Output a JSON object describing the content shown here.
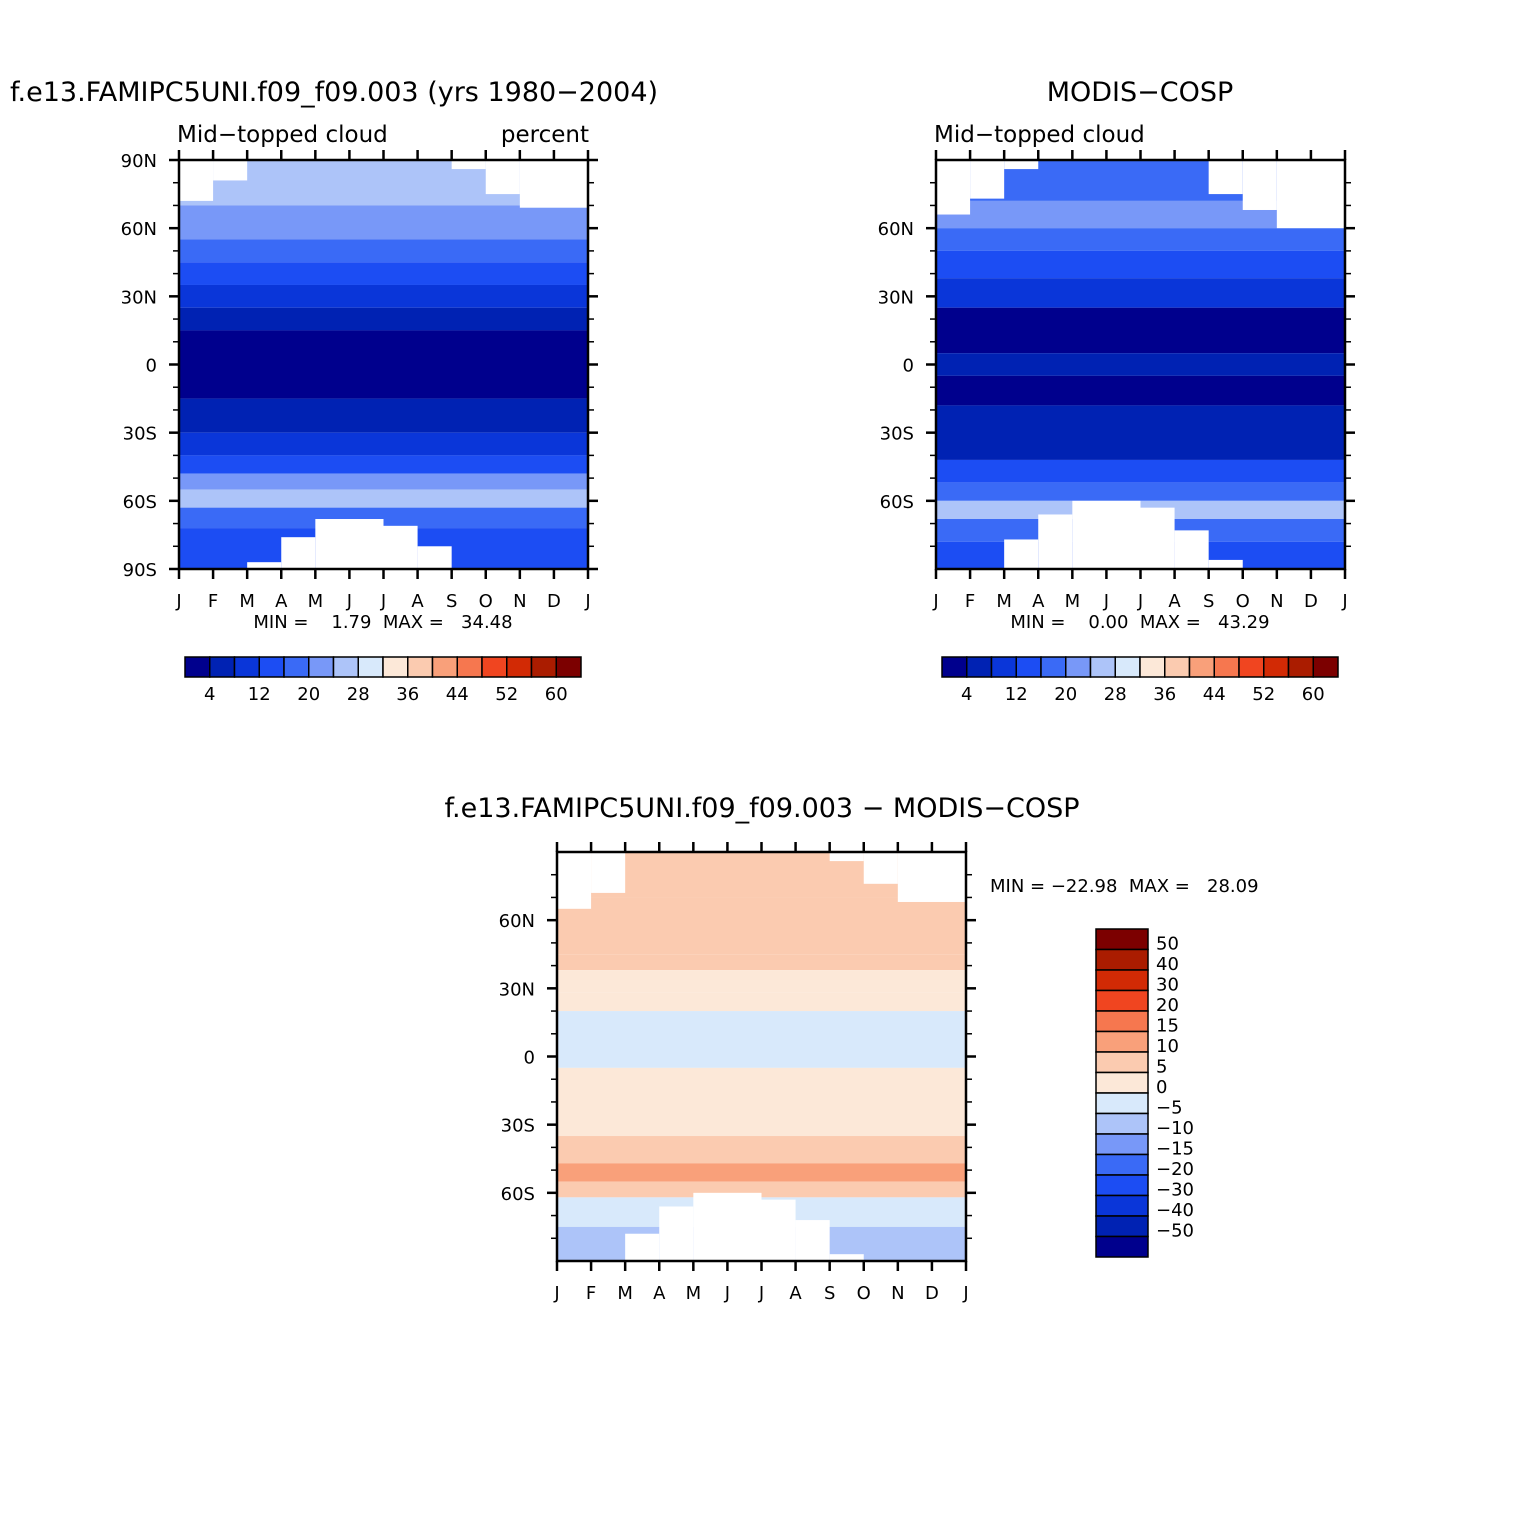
{
  "chart_data": [
    {
      "type": "heatmap",
      "id": "model",
      "title": "f.e13.FAMIPC5UNI.f09_f09.003 (yrs 1980-2004)",
      "left_label": "Mid-topped cloud",
      "right_label": "percent",
      "x_ticks": [
        "J",
        "F",
        "M",
        "A",
        "M",
        "J",
        "J",
        "A",
        "S",
        "O",
        "N",
        "D",
        "J"
      ],
      "y_ticks": [
        "90N",
        "60N",
        "30N",
        "0",
        "30S",
        "60S",
        "90S"
      ],
      "ylim": [
        -90,
        90
      ],
      "stats": "MIN =    1.79  MAX =   34.48",
      "colorbar_labels": [
        "4",
        "12",
        "20",
        "28",
        "36",
        "44",
        "52",
        "60"
      ],
      "bands": [
        {
          "lat": [
            70,
            90
          ],
          "bin": 6
        },
        {
          "lat": [
            55,
            70
          ],
          "bin": 5
        },
        {
          "lat": [
            45,
            55
          ],
          "bin": 4
        },
        {
          "lat": [
            35,
            45
          ],
          "bin": 3
        },
        {
          "lat": [
            25,
            35
          ],
          "bin": 2
        },
        {
          "lat": [
            15,
            25
          ],
          "bin": 1
        },
        {
          "lat": [
            -15,
            15
          ],
          "bin": 0
        },
        {
          "lat": [
            -30,
            -15
          ],
          "bin": 1
        },
        {
          "lat": [
            -40,
            -30
          ],
          "bin": 2
        },
        {
          "lat": [
            -48,
            -40
          ],
          "bin": 3
        },
        {
          "lat": [
            -55,
            -48
          ],
          "bin": 5
        },
        {
          "lat": [
            -63,
            -55
          ],
          "bin": 6
        },
        {
          "lat": [
            -72,
            -63
          ],
          "bin": 4
        },
        {
          "lat": [
            -90,
            -72
          ],
          "bin": 3
        }
      ],
      "blanks": [
        {
          "month": [
            0,
            1
          ],
          "lat": [
            72,
            90
          ]
        },
        {
          "month": [
            1,
            2
          ],
          "lat": [
            81,
            90
          ]
        },
        {
          "month": [
            8,
            9
          ],
          "lat": [
            86,
            90
          ]
        },
        {
          "month": [
            9,
            10
          ],
          "lat": [
            75,
            90
          ]
        },
        {
          "month": [
            10,
            12
          ],
          "lat": [
            69,
            90
          ]
        },
        {
          "month": [
            2,
            3
          ],
          "lat": [
            -90,
            -87
          ]
        },
        {
          "month": [
            3,
            4
          ],
          "lat": [
            -90,
            -76
          ]
        },
        {
          "month": [
            4,
            6
          ],
          "lat": [
            -90,
            -68
          ]
        },
        {
          "month": [
            6,
            7
          ],
          "lat": [
            -90,
            -71
          ]
        },
        {
          "month": [
            7,
            8
          ],
          "lat": [
            -90,
            -80
          ]
        }
      ]
    },
    {
      "type": "heatmap",
      "id": "obs",
      "title": "MODIS-COSP",
      "left_label": "Mid-topped cloud",
      "right_label": "",
      "x_ticks": [
        "J",
        "F",
        "M",
        "A",
        "M",
        "J",
        "J",
        "A",
        "S",
        "O",
        "N",
        "D",
        "J"
      ],
      "y_ticks": [
        "60N",
        "30N",
        "0",
        "30S",
        "60S"
      ],
      "ylim": [
        -90,
        90
      ],
      "stats": "MIN =    0.00  MAX =   43.29",
      "colorbar_labels": [
        "4",
        "12",
        "20",
        "28",
        "36",
        "44",
        "52",
        "60"
      ],
      "bands": [
        {
          "lat": [
            72,
            90
          ],
          "bin": 4
        },
        {
          "lat": [
            60,
            72
          ],
          "bin": 5
        },
        {
          "lat": [
            50,
            60
          ],
          "bin": 4
        },
        {
          "lat": [
            38,
            50
          ],
          "bin": 3
        },
        {
          "lat": [
            25,
            38
          ],
          "bin": 2
        },
        {
          "lat": [
            5,
            25
          ],
          "bin": 0
        },
        {
          "lat": [
            -5,
            5
          ],
          "bin": 1
        },
        {
          "lat": [
            -18,
            -5
          ],
          "bin": 0
        },
        {
          "lat": [
            -42,
            -18
          ],
          "bin": 1
        },
        {
          "lat": [
            -52,
            -42
          ],
          "bin": 3
        },
        {
          "lat": [
            -60,
            -52
          ],
          "bin": 4
        },
        {
          "lat": [
            -68,
            -60
          ],
          "bin": 6
        },
        {
          "lat": [
            -78,
            -68
          ],
          "bin": 4
        },
        {
          "lat": [
            -90,
            -78
          ],
          "bin": 3
        }
      ],
      "blanks": [
        {
          "month": [
            0,
            1
          ],
          "lat": [
            66,
            90
          ]
        },
        {
          "month": [
            1,
            2
          ],
          "lat": [
            73,
            90
          ]
        },
        {
          "month": [
            2,
            3
          ],
          "lat": [
            86,
            90
          ]
        },
        {
          "month": [
            8,
            9
          ],
          "lat": [
            75,
            90
          ]
        },
        {
          "month": [
            9,
            10
          ],
          "lat": [
            68,
            90
          ]
        },
        {
          "month": [
            10,
            12
          ],
          "lat": [
            60,
            90
          ]
        },
        {
          "month": [
            2,
            3
          ],
          "lat": [
            -90,
            -77
          ]
        },
        {
          "month": [
            3,
            4
          ],
          "lat": [
            -90,
            -66
          ]
        },
        {
          "month": [
            4,
            6
          ],
          "lat": [
            -90,
            -60
          ]
        },
        {
          "month": [
            6,
            7
          ],
          "lat": [
            -90,
            -63
          ]
        },
        {
          "month": [
            7,
            8
          ],
          "lat": [
            -90,
            -73
          ]
        },
        {
          "month": [
            8,
            9
          ],
          "lat": [
            -90,
            -86
          ]
        }
      ]
    },
    {
      "type": "heatmap",
      "id": "diff",
      "title": "f.e13.FAMIPC5UNI.f09_f09.003 - MODIS-COSP",
      "x_ticks": [
        "J",
        "F",
        "M",
        "A",
        "M",
        "J",
        "J",
        "A",
        "S",
        "O",
        "N",
        "D",
        "J"
      ],
      "y_ticks": [
        "60N",
        "30N",
        "0",
        "30S",
        "60S"
      ],
      "ylim": [
        -90,
        90
      ],
      "stats": "MIN = -22.98  MAX =   28.09",
      "colorbar_labels": [
        "50",
        "40",
        "30",
        "20",
        "15",
        "10",
        "5",
        "0",
        "-5",
        "-10",
        "-15",
        "-20",
        "-30",
        "-40",
        "-50"
      ],
      "bands": [
        {
          "lat": [
            70,
            90
          ],
          "bin": 9
        },
        {
          "lat": [
            45,
            70
          ],
          "bin": 9
        },
        {
          "lat": [
            38,
            45
          ],
          "bin": 9
        },
        {
          "lat": [
            28,
            38
          ],
          "bin": 8
        },
        {
          "lat": [
            20,
            28
          ],
          "bin": 8
        },
        {
          "lat": [
            -5,
            20
          ],
          "bin": 7
        },
        {
          "lat": [
            -35,
            -5
          ],
          "bin": 8
        },
        {
          "lat": [
            -47,
            -35
          ],
          "bin": 9
        },
        {
          "lat": [
            -55,
            -47
          ],
          "bin": 10
        },
        {
          "lat": [
            -62,
            -55
          ],
          "bin": 9
        },
        {
          "lat": [
            -75,
            -62
          ],
          "bin": 7
        },
        {
          "lat": [
            -90,
            -75
          ],
          "bin": 6
        }
      ],
      "blanks": [
        {
          "month": [
            0,
            1
          ],
          "lat": [
            65,
            90
          ]
        },
        {
          "month": [
            1,
            2
          ],
          "lat": [
            72,
            90
          ]
        },
        {
          "month": [
            8,
            9
          ],
          "lat": [
            86,
            90
          ]
        },
        {
          "month": [
            9,
            10
          ],
          "lat": [
            76,
            90
          ]
        },
        {
          "month": [
            10,
            12
          ],
          "lat": [
            68,
            90
          ]
        },
        {
          "month": [
            2,
            3
          ],
          "lat": [
            -90,
            -78
          ]
        },
        {
          "month": [
            3,
            4
          ],
          "lat": [
            -90,
            -66
          ]
        },
        {
          "month": [
            4,
            6
          ],
          "lat": [
            -90,
            -60
          ]
        },
        {
          "month": [
            6,
            7
          ],
          "lat": [
            -90,
            -63
          ]
        },
        {
          "month": [
            7,
            8
          ],
          "lat": [
            -90,
            -72
          ]
        },
        {
          "month": [
            8,
            9
          ],
          "lat": [
            -90,
            -87
          ]
        }
      ]
    }
  ],
  "palette": {
    "abs": [
      "#00008d",
      "#0022b3",
      "#0a36d9",
      "#1c4df3",
      "#3a6af6",
      "#7898f8",
      "#adc4f9",
      "#d8e9fb",
      "#fce8d8",
      "#fbcbb0",
      "#f9a07a",
      "#f6774f",
      "#f04520",
      "#d22a05",
      "#aa1c00",
      "#7c0000"
    ],
    "diff": [
      "#00008d",
      "#0022b3",
      "#0a36d9",
      "#1c4df3",
      "#3a6af6",
      "#7898f8",
      "#adc4f9",
      "#d8e9fb",
      "#fce8d8",
      "#fbcbb0",
      "#f9a07a",
      "#f6774f",
      "#f04520",
      "#d22a05",
      "#aa1c00",
      "#7c0000"
    ]
  }
}
